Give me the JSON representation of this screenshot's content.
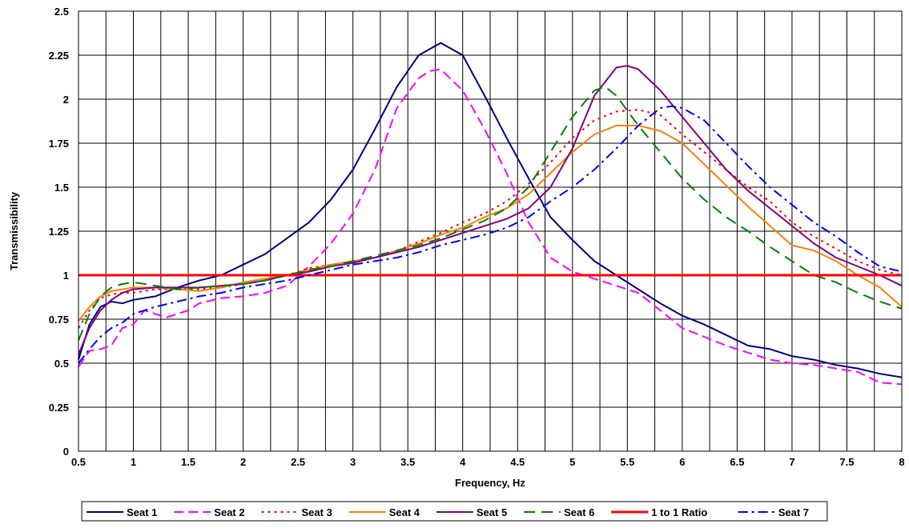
{
  "chart_data": {
    "type": "line",
    "title": "",
    "xlabel": "Frequency, Hz",
    "ylabel": "Transmissibility",
    "xlim": [
      0.5,
      8
    ],
    "ylim": [
      0,
      2.5
    ],
    "x_ticks": [
      "0.5",
      "1",
      "1.5",
      "2",
      "2.5",
      "3",
      "3.5",
      "4",
      "4.5",
      "5",
      "5.5",
      "6",
      "6.5",
      "7",
      "7.5",
      "8"
    ],
    "y_ticks": [
      "0",
      "0.25",
      "0.5",
      "0.75",
      "1",
      "1.25",
      "1.5",
      "1.75",
      "2",
      "2.25",
      "2.5"
    ],
    "grid": true,
    "legend_position": "bottom",
    "series": [
      {
        "name": "Seat 1",
        "color": "#000080",
        "dash": "solid",
        "points": [
          [
            0.5,
            0.52
          ],
          [
            0.6,
            0.72
          ],
          [
            0.7,
            0.82
          ],
          [
            0.8,
            0.85
          ],
          [
            0.9,
            0.84
          ],
          [
            1.0,
            0.86
          ],
          [
            1.2,
            0.88
          ],
          [
            1.4,
            0.93
          ],
          [
            1.6,
            0.97
          ],
          [
            1.8,
            1.0
          ],
          [
            2.0,
            1.06
          ],
          [
            2.2,
            1.12
          ],
          [
            2.4,
            1.21
          ],
          [
            2.6,
            1.3
          ],
          [
            2.8,
            1.43
          ],
          [
            3.0,
            1.6
          ],
          [
            3.2,
            1.83
          ],
          [
            3.4,
            2.07
          ],
          [
            3.6,
            2.25
          ],
          [
            3.8,
            2.32
          ],
          [
            4.0,
            2.25
          ],
          [
            4.2,
            2.02
          ],
          [
            4.4,
            1.78
          ],
          [
            4.6,
            1.55
          ],
          [
            4.8,
            1.33
          ],
          [
            5.0,
            1.2
          ],
          [
            5.2,
            1.08
          ],
          [
            5.4,
            1.0
          ],
          [
            5.6,
            0.92
          ],
          [
            5.8,
            0.84
          ],
          [
            6.0,
            0.77
          ],
          [
            6.2,
            0.72
          ],
          [
            6.4,
            0.66
          ],
          [
            6.6,
            0.6
          ],
          [
            6.8,
            0.58
          ],
          [
            7.0,
            0.54
          ],
          [
            7.2,
            0.52
          ],
          [
            7.4,
            0.49
          ],
          [
            7.6,
            0.47
          ],
          [
            7.8,
            0.44
          ],
          [
            8.0,
            0.42
          ]
        ]
      },
      {
        "name": "Seat 2",
        "color": "#ff00ff",
        "dash": "12,6",
        "points": [
          [
            0.5,
            0.48
          ],
          [
            0.6,
            0.57
          ],
          [
            0.7,
            0.58
          ],
          [
            0.8,
            0.6
          ],
          [
            0.9,
            0.7
          ],
          [
            1.0,
            0.72
          ],
          [
            1.1,
            0.8
          ],
          [
            1.2,
            0.78
          ],
          [
            1.3,
            0.76
          ],
          [
            1.4,
            0.78
          ],
          [
            1.5,
            0.8
          ],
          [
            1.6,
            0.84
          ],
          [
            1.8,
            0.87
          ],
          [
            2.0,
            0.88
          ],
          [
            2.2,
            0.9
          ],
          [
            2.4,
            0.94
          ],
          [
            2.6,
            1.05
          ],
          [
            2.8,
            1.18
          ],
          [
            3.0,
            1.35
          ],
          [
            3.2,
            1.6
          ],
          [
            3.4,
            1.95
          ],
          [
            3.6,
            2.12
          ],
          [
            3.7,
            2.16
          ],
          [
            3.8,
            2.17
          ],
          [
            4.0,
            2.05
          ],
          [
            4.2,
            1.83
          ],
          [
            4.4,
            1.58
          ],
          [
            4.6,
            1.3
          ],
          [
            4.8,
            1.1
          ],
          [
            5.0,
            1.02
          ],
          [
            5.2,
            0.98
          ],
          [
            5.4,
            0.94
          ],
          [
            5.6,
            0.9
          ],
          [
            5.8,
            0.8
          ],
          [
            6.0,
            0.7
          ],
          [
            6.2,
            0.65
          ],
          [
            6.4,
            0.6
          ],
          [
            6.6,
            0.56
          ],
          [
            6.8,
            0.52
          ],
          [
            7.0,
            0.5
          ],
          [
            7.2,
            0.49
          ],
          [
            7.4,
            0.47
          ],
          [
            7.5,
            0.46
          ],
          [
            7.6,
            0.45
          ],
          [
            7.7,
            0.42
          ],
          [
            7.8,
            0.39
          ],
          [
            8.0,
            0.38
          ]
        ]
      },
      {
        "name": "Seat 3",
        "color": "#ff0000",
        "dash": "3,5",
        "points": [
          [
            0.5,
            0.7
          ],
          [
            0.6,
            0.8
          ],
          [
            0.7,
            0.87
          ],
          [
            0.8,
            0.89
          ],
          [
            0.9,
            0.9
          ],
          [
            1.0,
            0.9
          ],
          [
            1.2,
            0.92
          ],
          [
            1.4,
            0.92
          ],
          [
            1.6,
            0.92
          ],
          [
            1.8,
            0.93
          ],
          [
            2.0,
            0.95
          ],
          [
            2.2,
            0.97
          ],
          [
            2.4,
            1.0
          ],
          [
            2.6,
            1.04
          ],
          [
            2.8,
            1.06
          ],
          [
            3.0,
            1.08
          ],
          [
            3.2,
            1.1
          ],
          [
            3.4,
            1.14
          ],
          [
            3.6,
            1.19
          ],
          [
            3.8,
            1.24
          ],
          [
            4.0,
            1.3
          ],
          [
            4.2,
            1.35
          ],
          [
            4.4,
            1.42
          ],
          [
            4.6,
            1.52
          ],
          [
            4.8,
            1.64
          ],
          [
            5.0,
            1.78
          ],
          [
            5.2,
            1.88
          ],
          [
            5.4,
            1.93
          ],
          [
            5.6,
            1.94
          ],
          [
            5.8,
            1.91
          ],
          [
            6.0,
            1.8
          ],
          [
            6.2,
            1.7
          ],
          [
            6.4,
            1.6
          ],
          [
            6.6,
            1.5
          ],
          [
            6.8,
            1.42
          ],
          [
            7.0,
            1.3
          ],
          [
            7.2,
            1.22
          ],
          [
            7.4,
            1.15
          ],
          [
            7.6,
            1.08
          ],
          [
            7.8,
            1.03
          ],
          [
            8.0,
            1.0
          ]
        ]
      },
      {
        "name": "Seat 4",
        "color": "#ff8000",
        "dash": "solid",
        "points": [
          [
            0.5,
            0.74
          ],
          [
            0.6,
            0.82
          ],
          [
            0.7,
            0.88
          ],
          [
            0.8,
            0.91
          ],
          [
            0.9,
            0.92
          ],
          [
            1.0,
            0.93
          ],
          [
            1.2,
            0.93
          ],
          [
            1.4,
            0.92
          ],
          [
            1.6,
            0.91
          ],
          [
            1.8,
            0.93
          ],
          [
            2.0,
            0.96
          ],
          [
            2.2,
            0.98
          ],
          [
            2.4,
            1.0
          ],
          [
            2.6,
            1.03
          ],
          [
            2.8,
            1.06
          ],
          [
            3.0,
            1.08
          ],
          [
            3.2,
            1.1
          ],
          [
            3.4,
            1.14
          ],
          [
            3.6,
            1.18
          ],
          [
            3.8,
            1.23
          ],
          [
            4.0,
            1.27
          ],
          [
            4.2,
            1.33
          ],
          [
            4.4,
            1.38
          ],
          [
            4.6,
            1.46
          ],
          [
            4.8,
            1.58
          ],
          [
            5.0,
            1.7
          ],
          [
            5.2,
            1.8
          ],
          [
            5.4,
            1.85
          ],
          [
            5.6,
            1.85
          ],
          [
            5.8,
            1.82
          ],
          [
            6.0,
            1.75
          ],
          [
            6.2,
            1.63
          ],
          [
            6.4,
            1.51
          ],
          [
            6.6,
            1.39
          ],
          [
            6.8,
            1.28
          ],
          [
            7.0,
            1.17
          ],
          [
            7.2,
            1.14
          ],
          [
            7.4,
            1.08
          ],
          [
            7.6,
            1.0
          ],
          [
            7.8,
            0.93
          ],
          [
            8.0,
            0.82
          ]
        ]
      },
      {
        "name": "Seat 5",
        "color": "#800080",
        "dash": "solid",
        "points": [
          [
            0.5,
            0.55
          ],
          [
            0.6,
            0.7
          ],
          [
            0.7,
            0.8
          ],
          [
            0.8,
            0.86
          ],
          [
            0.9,
            0.9
          ],
          [
            1.0,
            0.92
          ],
          [
            1.2,
            0.93
          ],
          [
            1.4,
            0.93
          ],
          [
            1.6,
            0.93
          ],
          [
            1.8,
            0.94
          ],
          [
            2.0,
            0.95
          ],
          [
            2.2,
            0.97
          ],
          [
            2.4,
            1.0
          ],
          [
            2.6,
            1.02
          ],
          [
            2.8,
            1.05
          ],
          [
            3.0,
            1.07
          ],
          [
            3.2,
            1.1
          ],
          [
            3.4,
            1.13
          ],
          [
            3.6,
            1.16
          ],
          [
            3.8,
            1.2
          ],
          [
            4.0,
            1.24
          ],
          [
            4.2,
            1.28
          ],
          [
            4.4,
            1.32
          ],
          [
            4.6,
            1.38
          ],
          [
            4.8,
            1.5
          ],
          [
            5.0,
            1.72
          ],
          [
            5.2,
            2.02
          ],
          [
            5.4,
            2.18
          ],
          [
            5.5,
            2.19
          ],
          [
            5.6,
            2.17
          ],
          [
            5.8,
            2.05
          ],
          [
            6.0,
            1.9
          ],
          [
            6.2,
            1.75
          ],
          [
            6.4,
            1.6
          ],
          [
            6.6,
            1.48
          ],
          [
            6.8,
            1.38
          ],
          [
            7.0,
            1.28
          ],
          [
            7.2,
            1.18
          ],
          [
            7.4,
            1.1
          ],
          [
            7.6,
            1.05
          ],
          [
            7.8,
            1.0
          ],
          [
            8.0,
            0.94
          ]
        ]
      },
      {
        "name": "Seat 6",
        "color": "#008000",
        "dash": "14,8",
        "points": [
          [
            0.5,
            0.63
          ],
          [
            0.6,
            0.78
          ],
          [
            0.7,
            0.88
          ],
          [
            0.8,
            0.93
          ],
          [
            0.9,
            0.95
          ],
          [
            1.0,
            0.96
          ],
          [
            1.2,
            0.94
          ],
          [
            1.4,
            0.92
          ],
          [
            1.6,
            0.93
          ],
          [
            1.8,
            0.94
          ],
          [
            2.0,
            0.95
          ],
          [
            2.2,
            0.97
          ],
          [
            2.4,
            1.0
          ],
          [
            2.6,
            1.03
          ],
          [
            2.8,
            1.05
          ],
          [
            3.0,
            1.08
          ],
          [
            3.2,
            1.11
          ],
          [
            3.4,
            1.14
          ],
          [
            3.6,
            1.17
          ],
          [
            3.8,
            1.21
          ],
          [
            4.0,
            1.26
          ],
          [
            4.2,
            1.31
          ],
          [
            4.4,
            1.38
          ],
          [
            4.6,
            1.5
          ],
          [
            4.8,
            1.7
          ],
          [
            5.0,
            1.9
          ],
          [
            5.2,
            2.05
          ],
          [
            5.3,
            2.07
          ],
          [
            5.4,
            2.02
          ],
          [
            5.6,
            1.85
          ],
          [
            5.8,
            1.7
          ],
          [
            6.0,
            1.55
          ],
          [
            6.2,
            1.43
          ],
          [
            6.4,
            1.33
          ],
          [
            6.6,
            1.25
          ],
          [
            6.8,
            1.16
          ],
          [
            7.0,
            1.08
          ],
          [
            7.2,
            1.0
          ],
          [
            7.4,
            0.96
          ],
          [
            7.6,
            0.9
          ],
          [
            7.8,
            0.85
          ],
          [
            8.0,
            0.81
          ]
        ]
      },
      {
        "name": "1 to 1 Ratio",
        "color": "#ff0000",
        "dash": "solid",
        "width": 3,
        "points": [
          [
            0.5,
            1.0
          ],
          [
            8.0,
            1.0
          ]
        ]
      },
      {
        "name": "Seat 7",
        "color": "#0000ff",
        "dash": "12,5,3,5",
        "points": [
          [
            0.5,
            0.5
          ],
          [
            0.6,
            0.58
          ],
          [
            0.7,
            0.65
          ],
          [
            0.8,
            0.7
          ],
          [
            0.9,
            0.73
          ],
          [
            1.0,
            0.78
          ],
          [
            1.2,
            0.82
          ],
          [
            1.4,
            0.85
          ],
          [
            1.6,
            0.88
          ],
          [
            1.8,
            0.9
          ],
          [
            2.0,
            0.93
          ],
          [
            2.2,
            0.95
          ],
          [
            2.4,
            0.97
          ],
          [
            2.6,
            1.0
          ],
          [
            2.8,
            1.03
          ],
          [
            3.0,
            1.06
          ],
          [
            3.2,
            1.08
          ],
          [
            3.4,
            1.1
          ],
          [
            3.6,
            1.13
          ],
          [
            3.8,
            1.17
          ],
          [
            4.0,
            1.2
          ],
          [
            4.2,
            1.23
          ],
          [
            4.4,
            1.27
          ],
          [
            4.6,
            1.33
          ],
          [
            4.8,
            1.42
          ],
          [
            5.0,
            1.5
          ],
          [
            5.2,
            1.6
          ],
          [
            5.4,
            1.72
          ],
          [
            5.6,
            1.85
          ],
          [
            5.8,
            1.95
          ],
          [
            5.9,
            1.96
          ],
          [
            6.0,
            1.95
          ],
          [
            6.2,
            1.88
          ],
          [
            6.4,
            1.75
          ],
          [
            6.6,
            1.62
          ],
          [
            6.8,
            1.5
          ],
          [
            7.0,
            1.4
          ],
          [
            7.2,
            1.3
          ],
          [
            7.4,
            1.22
          ],
          [
            7.6,
            1.13
          ],
          [
            7.8,
            1.05
          ],
          [
            8.0,
            1.02
          ]
        ]
      }
    ]
  }
}
